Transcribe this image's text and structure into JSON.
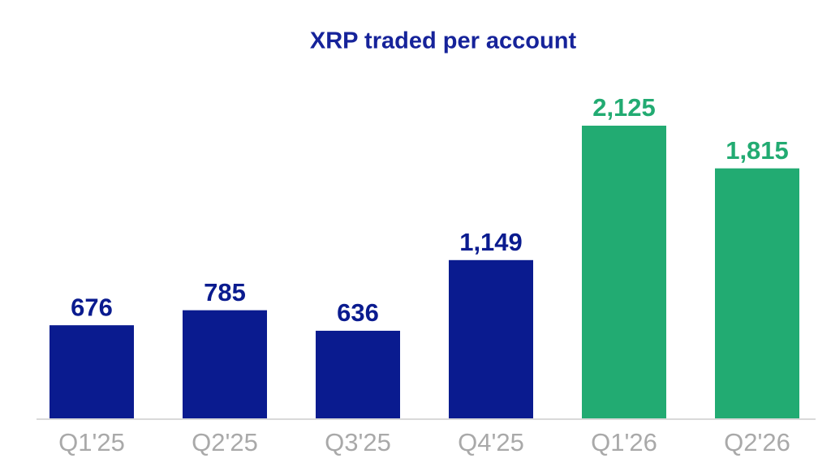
{
  "chart_data": {
    "type": "bar",
    "title": "XRP traded per account",
    "categories": [
      "Q1'25",
      "Q2'25",
      "Q3'25",
      "Q4'25",
      "Q1'26",
      "Q2'26"
    ],
    "values": [
      676,
      785,
      636,
      1149,
      2125,
      1815
    ],
    "value_labels": [
      "676",
      "785",
      "636",
      "1,149",
      "2,125",
      "1,815"
    ],
    "colors": [
      "#0a1b8f",
      "#0a1b8f",
      "#0a1b8f",
      "#0a1b8f",
      "#22ab72",
      "#22ab72"
    ]
  }
}
